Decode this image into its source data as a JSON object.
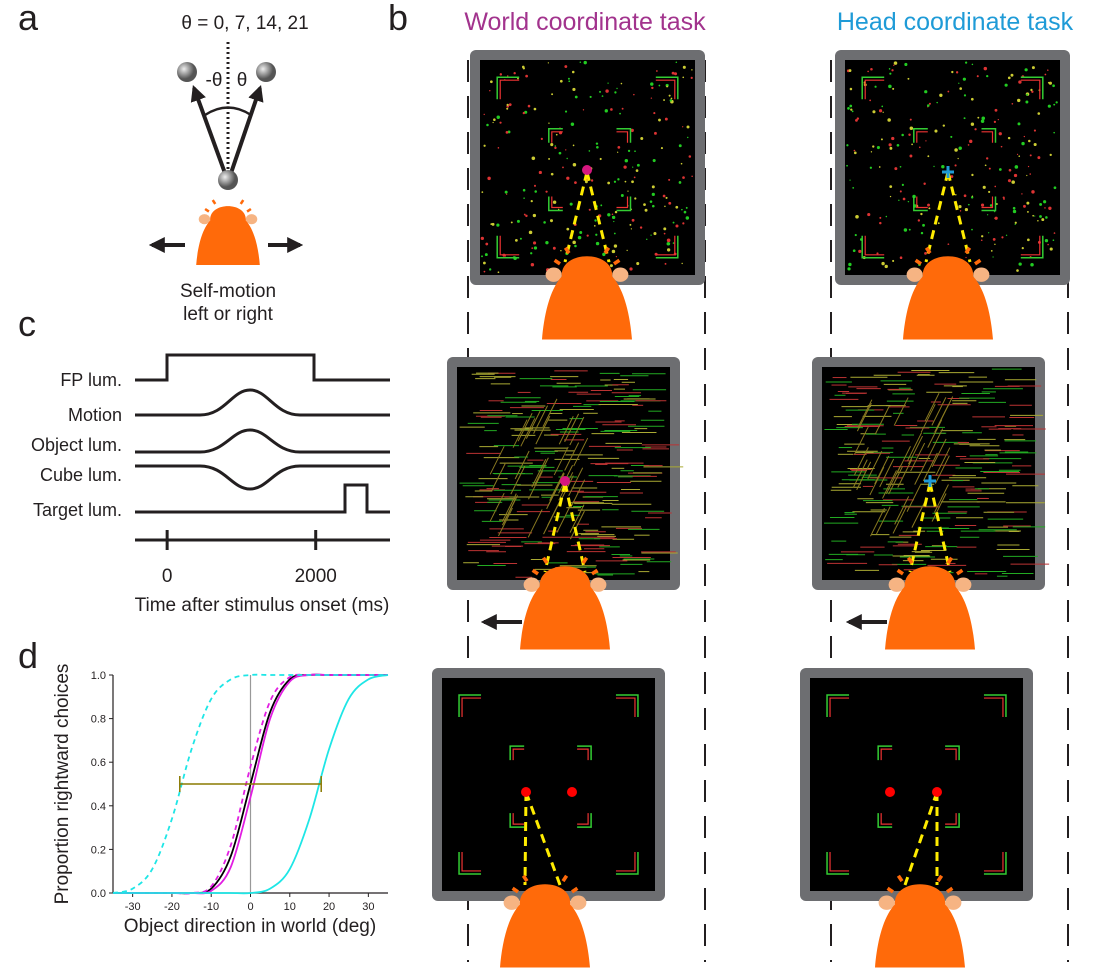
{
  "panel_a": {
    "label": "a",
    "theta_text": "θ = 0, 7, 14, 21",
    "neg_theta": "-θ",
    "pos_theta": "θ",
    "caption": [
      "Self-motion",
      "left or right"
    ]
  },
  "panel_b": {
    "label": "b",
    "titles": [
      {
        "text": "World coordinate task",
        "color": "#a2338d"
      },
      {
        "text": "Head coordinate task",
        "color": "#1f9bd7"
      }
    ]
  },
  "panel_c": {
    "label": "c",
    "traces": [
      "FP lum.",
      "Motion",
      "Object lum.",
      "Cube lum.",
      "Target lum."
    ],
    "xlim": [
      -500,
      3000
    ],
    "xticks": [
      0,
      2000
    ],
    "xlabel": "Time after stimulus onset (ms)"
  },
  "panel_d": {
    "label": "d"
  },
  "chart_data": {
    "type": "line",
    "xlabel": "Object direction in world (deg)",
    "ylabel": "Proportion rightward choices",
    "x": [
      -35,
      -30,
      -25,
      -20,
      -15,
      -10,
      -5,
      0,
      5,
      10,
      15,
      20,
      25,
      30,
      35
    ],
    "series": [
      {
        "color": "#000000",
        "dash": false,
        "values": [
          0,
          0,
          0,
          0,
          0,
          0.02,
          0.17,
          0.5,
          0.83,
          0.98,
          1,
          1,
          1,
          1,
          1
        ]
      },
      {
        "color": "#e21de2",
        "dash": false,
        "values": [
          0,
          0,
          0,
          0,
          0,
          0.01,
          0.12,
          0.44,
          0.8,
          0.97,
          1,
          1,
          1,
          1,
          1
        ]
      },
      {
        "color": "#e21de2",
        "dash": true,
        "values": [
          0,
          0,
          0,
          0,
          0,
          0.03,
          0.22,
          0.58,
          0.88,
          0.99,
          1,
          1,
          1,
          1,
          1
        ]
      },
      {
        "color": "#1ee6e6",
        "dash": false,
        "values": [
          0,
          0,
          0,
          0,
          0,
          0,
          0,
          0,
          0.02,
          0.11,
          0.34,
          0.66,
          0.89,
          0.98,
          1
        ]
      },
      {
        "color": "#1ee6e6",
        "dash": true,
        "values": [
          0,
          0.02,
          0.11,
          0.34,
          0.66,
          0.89,
          0.98,
          1,
          1,
          1,
          1,
          1,
          1,
          1,
          1
        ]
      }
    ],
    "errorbar": {
      "x": [
        -18,
        18
      ],
      "y": 0.5,
      "color": "#8a7a00"
    },
    "xlim": [
      -35,
      35
    ],
    "ylim": [
      0,
      1
    ],
    "xticks": [
      -30,
      -20,
      -10,
      0,
      10,
      20,
      30
    ],
    "yticks": [
      {
        "value": 0,
        "label": "0.0"
      },
      0.2,
      0.4,
      0.6,
      0.8,
      {
        "value": 1,
        "label": "1.0"
      }
    ]
  }
}
